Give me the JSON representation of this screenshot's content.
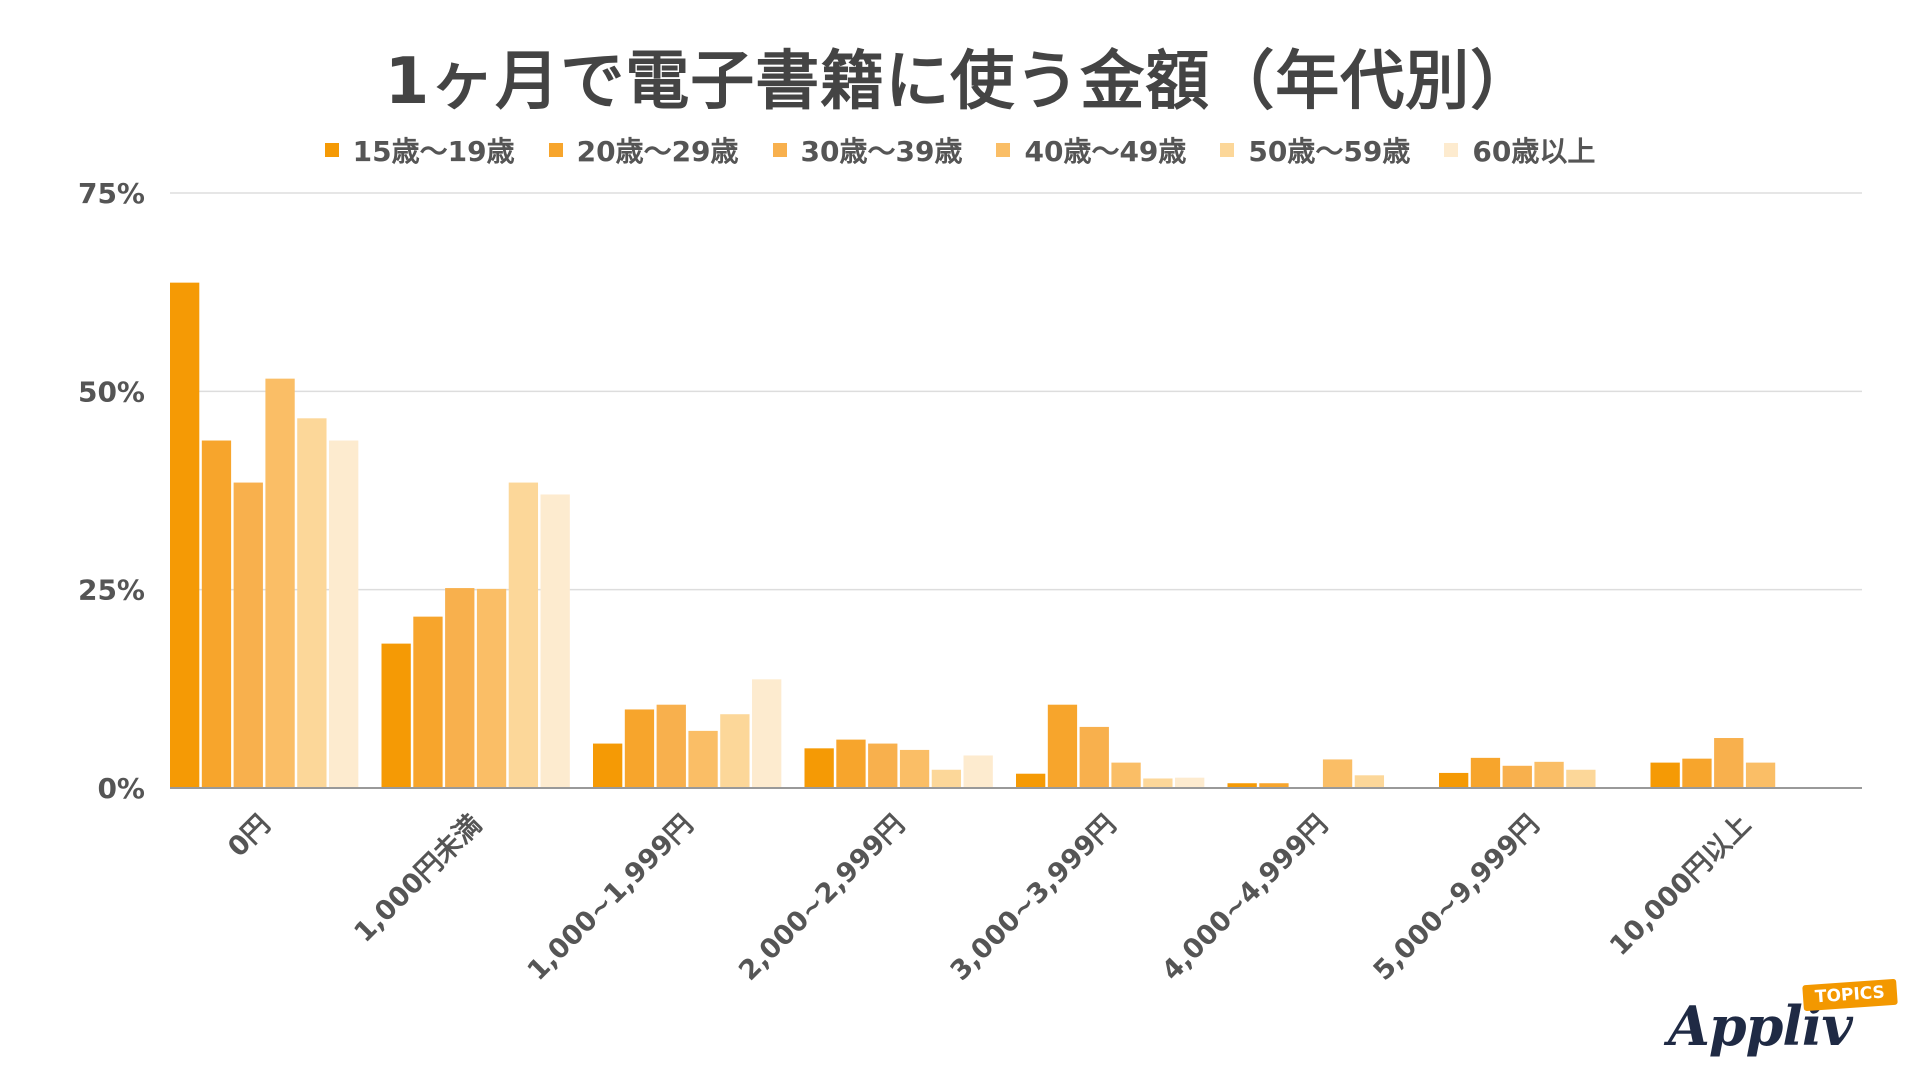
{
  "chart_data": {
    "type": "bar",
    "title": "1ヶ月で電子書籍に使う金額（年代別）",
    "categories": [
      "0円",
      "1,000円未満",
      "1,000~1,999円",
      "2,000~2,999円",
      "3,000~3,999円",
      "4,000~4,999円",
      "5,000~9,999円",
      "10,000円以上"
    ],
    "series": [
      {
        "name": "15歳〜19歳",
        "color": "#f59a05",
        "values": [
          63.7,
          18.2,
          5.6,
          5.0,
          1.8,
          0.6,
          1.9,
          3.2
        ]
      },
      {
        "name": "20歳〜29歳",
        "color": "#f7a52c",
        "values": [
          43.8,
          21.6,
          9.9,
          6.1,
          10.5,
          0.6,
          3.8,
          3.7
        ]
      },
      {
        "name": "30歳〜39歳",
        "color": "#f8b04d",
        "values": [
          38.5,
          25.2,
          10.5,
          5.6,
          7.7,
          0.0,
          2.8,
          6.3
        ]
      },
      {
        "name": "40歳〜49歳",
        "color": "#fabe66",
        "values": [
          51.6,
          25.1,
          7.2,
          4.8,
          3.2,
          3.6,
          3.3,
          3.2
        ]
      },
      {
        "name": "50歳〜59歳",
        "color": "#fcd799",
        "values": [
          46.6,
          38.5,
          9.3,
          2.3,
          1.2,
          1.6,
          2.3,
          0.0
        ]
      },
      {
        "name": "60歳以上",
        "color": "#fdebcf",
        "values": [
          43.8,
          37.0,
          13.7,
          4.1,
          1.3,
          0.0,
          0.0,
          0.0
        ]
      }
    ],
    "ylim": [
      0,
      75
    ],
    "yticks": [
      "0%",
      "25%",
      "50%",
      "75%"
    ],
    "ytick_values": [
      0,
      25,
      50,
      75
    ],
    "grid": true,
    "legend": "top-center"
  },
  "logo": {
    "name": "Appliv",
    "tag": "TOPICS"
  }
}
